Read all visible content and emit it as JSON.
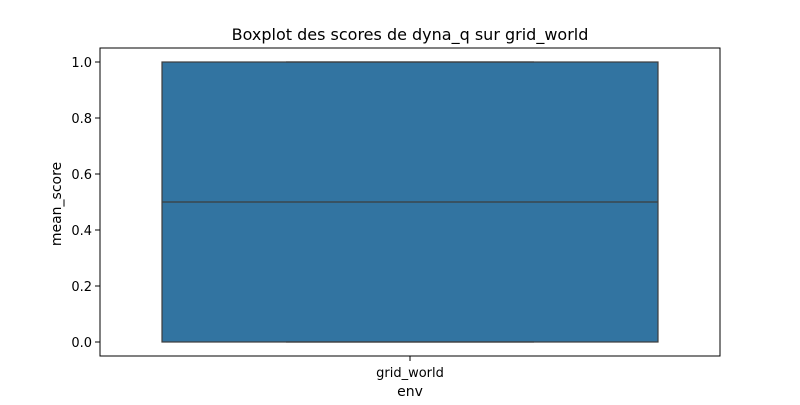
{
  "chart_data": {
    "type": "boxplot",
    "title": "Boxplot des scores de dyna_q sur grid_world",
    "xlabel": "env",
    "ylabel": "mean_score",
    "ylim": [
      -0.05,
      1.05
    ],
    "yticks": [
      0.0,
      0.2,
      0.4,
      0.6,
      0.8,
      1.0
    ],
    "ytick_labels": [
      "0.0",
      "0.2",
      "0.4",
      "0.6",
      "0.8",
      "1.0"
    ],
    "categories": [
      "grid_world"
    ],
    "boxes": [
      {
        "category": "grid_world",
        "min": 0.0,
        "q1": 0.0,
        "median": 0.5,
        "q3": 1.0,
        "max": 1.0
      }
    ],
    "box_color": "#3274a1",
    "edge_color": "#3d3d3d"
  }
}
